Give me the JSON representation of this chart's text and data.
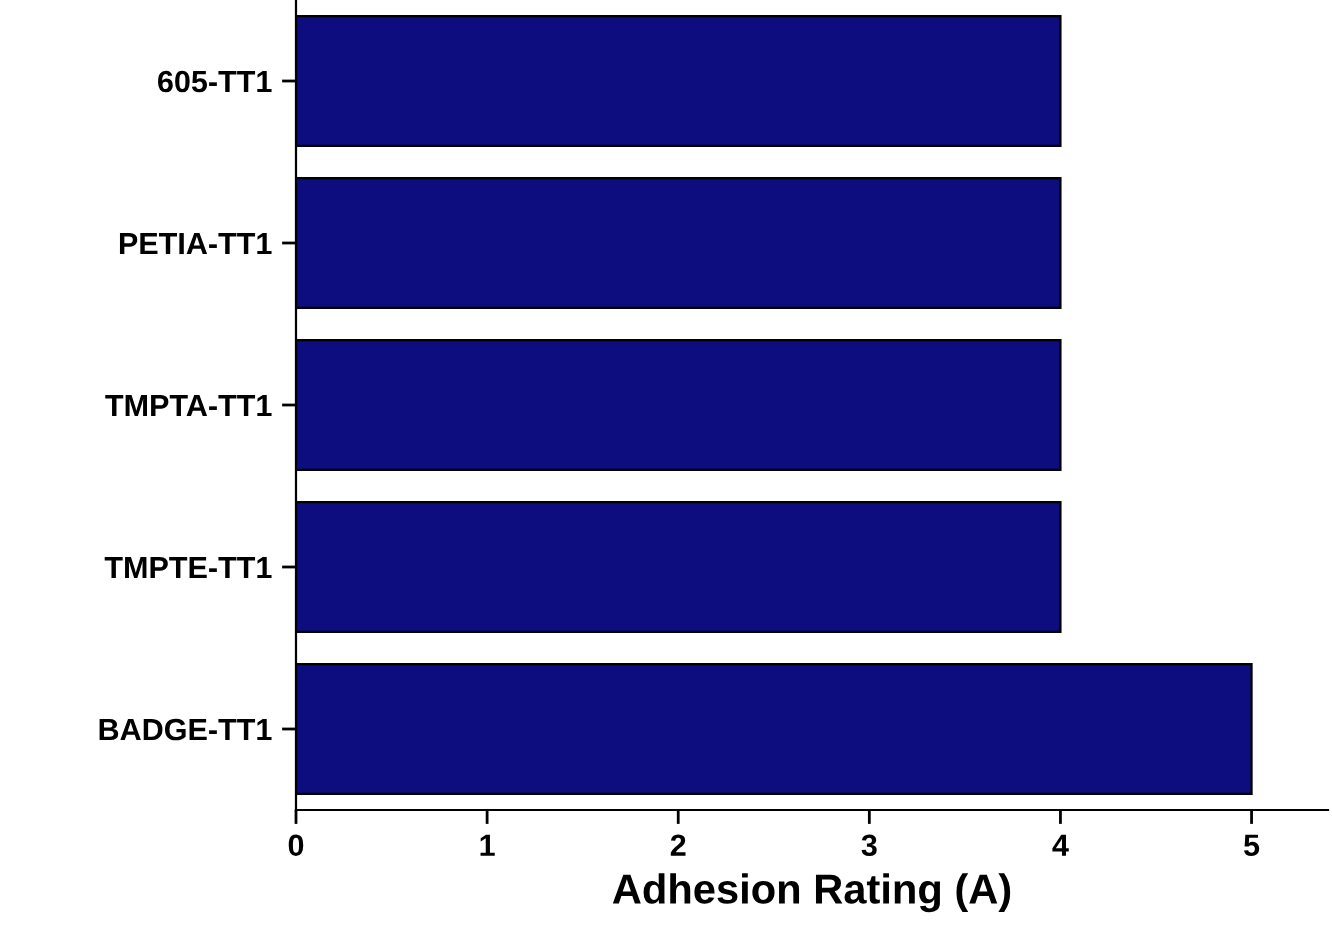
{
  "chart_data": {
    "type": "bar",
    "orientation": "horizontal",
    "xlabel": "Adhesion Rating (A)",
    "categories": [
      "605-TT1",
      "PETIA-TT1",
      "TMPTA-TT1",
      "TMPTE-TT1",
      "BADGE-TT1"
    ],
    "values": [
      4,
      4,
      4,
      4,
      5
    ],
    "color": "#0d0d80",
    "xlim": [
      0,
      5.4
    ],
    "xticks": [
      0,
      1,
      2,
      3,
      4,
      5
    ],
    "grid": false,
    "legend": false
  }
}
